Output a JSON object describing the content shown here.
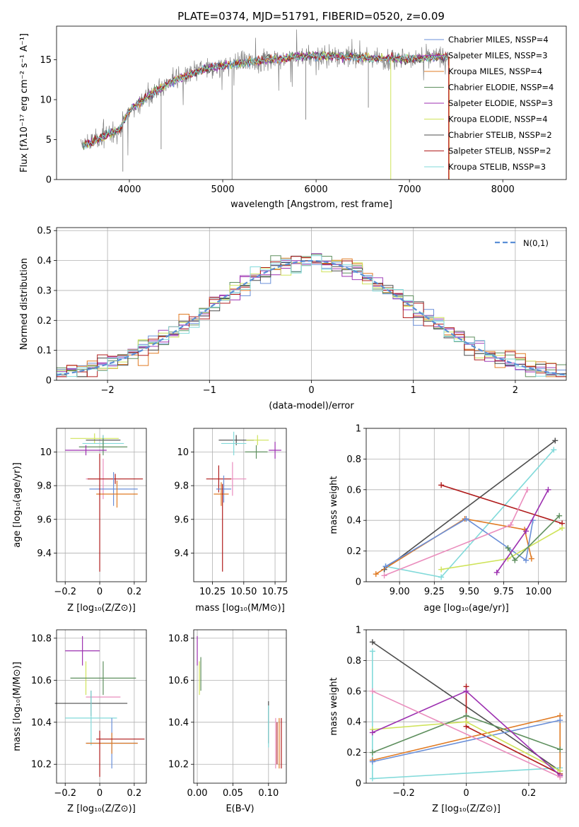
{
  "chart_data": [
    {
      "type": "line",
      "panel": "spectrum",
      "title": "PLATE=0374, MJD=51791, FIBERID=0520, z=0.09",
      "xlabel": "wavelength [Angstrom, rest frame]",
      "ylabel": "Flux [fλ10⁻¹⁷ erg cm⁻² s⁻¹ A⁻¹]",
      "xlim": [
        3220,
        8680
      ],
      "ylim": [
        0,
        19.2
      ],
      "xticks": [
        4000,
        5000,
        6000,
        7000,
        8000
      ],
      "yticks": [
        0,
        5,
        10,
        15
      ],
      "grid": false,
      "legend_position": "right",
      "series": [
        {
          "name": "Chabrier MILES, N_SSP=4",
          "color": "#6a8fd8"
        },
        {
          "name": "Salpeter MILES, N_SSP=3",
          "color": "#a040b8"
        },
        {
          "name": "Kroupa MILES, N_SSP=4",
          "color": "#e07b24"
        },
        {
          "name": "Chabrier ELODIE, N_SSP=4",
          "color": "#5e8f5e"
        },
        {
          "name": "Salpeter ELODIE, N_SSP=3",
          "color": "#9c2fb0"
        },
        {
          "name": "Kroupa ELODIE, N_SSP=4",
          "color": "#cfe35a"
        },
        {
          "name": "Chabrier STELIB, N_SSP=2",
          "color": "#4d4d4d"
        },
        {
          "name": "Salpeter STELIB, N_SSP=2",
          "color": "#b01c1c"
        },
        {
          "name": "Kroupa STELIB, N_SSP=3",
          "color": "#82dada"
        }
      ],
      "continuum": {
        "x": [
          3500,
          3700,
          3900,
          4000,
          4100,
          4300,
          4500,
          4800,
          5000,
          5200,
          5500,
          5800,
          6000,
          6300,
          6600,
          7000,
          7300,
          7420
        ],
        "y": [
          4.2,
          5.2,
          6.3,
          8.6,
          9.6,
          11.2,
          12.5,
          13.8,
          14.3,
          14.6,
          15.0,
          15.4,
          15.5,
          15.4,
          15.2,
          15.1,
          15.3,
          15.4
        ]
      },
      "data_color": "#808080"
    },
    {
      "type": "histogram",
      "panel": "residuals",
      "xlabel": "(data-model)/error",
      "ylabel": "Normed distribution",
      "xlim": [
        -2.5,
        2.5
      ],
      "ylim": [
        0,
        0.51
      ],
      "xticks": [
        -2,
        -1,
        0,
        1,
        2
      ],
      "yticks": [
        0.0,
        0.1,
        0.2,
        0.3,
        0.4,
        0.5
      ],
      "grid": true,
      "legend": [
        {
          "label": "N(0,1)",
          "style": "dashed",
          "color": "#5b8fd6"
        }
      ],
      "legend_position": "top-right",
      "bin_width": 0.1
    },
    {
      "type": "scatter",
      "panel": "age-vs-Z",
      "xlabel": "Z [log₁₀(Z/Z⊙)]",
      "ylabel": "age  [log₁₀(age/yr)]",
      "xlim": [
        -0.25,
        0.27
      ],
      "ylim": [
        9.23,
        10.14
      ],
      "xticks": [
        -0.2,
        0.0,
        0.2
      ],
      "yticks": [
        9.4,
        9.6,
        9.8,
        10.0
      ],
      "grid": true,
      "points": [
        {
          "x": -0.03,
          "y": 10.08,
          "xerr": 0.14,
          "yerr": 0.03,
          "color": "#cfe35a"
        },
        {
          "x": 0.02,
          "y": 10.07,
          "xerr": 0.1,
          "yerr": 0.03,
          "color": "#4d4d4d"
        },
        {
          "x": 0.02,
          "y": 10.05,
          "xerr": 0.12,
          "yerr": 0.05,
          "color": "#82dada"
        },
        {
          "x": 0.02,
          "y": 10.03,
          "xerr": 0.14,
          "yerr": 0.05,
          "color": "#5e8f5e"
        },
        {
          "x": -0.08,
          "y": 10.01,
          "xerr": 0.12,
          "yerr": 0.03,
          "color": "#9c2fb0"
        },
        {
          "x": 0.02,
          "y": 9.84,
          "xerr": 0.1,
          "yerr": 0.12,
          "color": "#ea8dbd"
        },
        {
          "x": 0.09,
          "y": 9.84,
          "xerr": 0.16,
          "yerr": 0.03,
          "color": "#b01c1c"
        },
        {
          "x": 0.08,
          "y": 9.78,
          "xerr": 0.14,
          "yerr": 0.1,
          "color": "#6a8fd8"
        },
        {
          "x": 0.1,
          "y": 9.75,
          "xerr": 0.12,
          "yerr": 0.08,
          "color": "#e07b24"
        },
        {
          "x": 0.0,
          "y": 9.64,
          "xerr": 0.0,
          "yerr": 0.35,
          "color": "#b01c1c"
        }
      ]
    },
    {
      "type": "scatter",
      "panel": "age-vs-mass",
      "xlabel": "mass [log₁₀(M/M⊙)]",
      "ylabel": "",
      "xlim": [
        10.1,
        10.84
      ],
      "ylim": [
        9.23,
        10.14
      ],
      "xticks": [
        10.25,
        10.5,
        10.75
      ],
      "xtick_labels": [
        "10.25",
        "10.50",
        "10.75"
      ],
      "yticks": [
        9.4,
        9.6,
        9.8,
        10.0
      ],
      "grid": true,
      "points": [
        {
          "x": 10.44,
          "y": 10.07,
          "xerr": 0.14,
          "yerr": 0.03,
          "color": "#4d4d4d"
        },
        {
          "x": 10.61,
          "y": 10.07,
          "xerr": 0.09,
          "yerr": 0.03,
          "color": "#cfe35a"
        },
        {
          "x": 10.6,
          "y": 10.0,
          "xerr": 0.09,
          "yerr": 0.04,
          "color": "#5e8f5e"
        },
        {
          "x": 10.42,
          "y": 10.05,
          "xerr": 0.1,
          "yerr": 0.07,
          "color": "#82dada"
        },
        {
          "x": 10.75,
          "y": 10.01,
          "xerr": 0.05,
          "yerr": 0.05,
          "color": "#9c2fb0"
        },
        {
          "x": 10.41,
          "y": 9.84,
          "xerr": 0.11,
          "yerr": 0.1,
          "color": "#ea8dbd"
        },
        {
          "x": 10.3,
          "y": 9.84,
          "xerr": 0.1,
          "yerr": 0.08,
          "color": "#b01c1c"
        },
        {
          "x": 10.34,
          "y": 9.78,
          "xerr": 0.06,
          "yerr": 0.08,
          "color": "#6a8fd8"
        },
        {
          "x": 10.32,
          "y": 9.75,
          "xerr": 0.06,
          "yerr": 0.07,
          "color": "#e07b24"
        },
        {
          "x": 10.33,
          "y": 9.55,
          "xerr": 0.0,
          "yerr": 0.26,
          "color": "#b01c1c"
        }
      ]
    },
    {
      "type": "line",
      "panel": "weight-vs-age",
      "xlabel": "age  [log₁₀(age/yr)]",
      "ylabel": "mass weight",
      "xlim": [
        8.76,
        10.2
      ],
      "ylim": [
        0,
        1.0
      ],
      "xticks": [
        9.0,
        9.25,
        9.5,
        9.75,
        10.0
      ],
      "xtick_labels": [
        "9.00",
        "9.25",
        "9.50",
        "9.75",
        "10.00"
      ],
      "yticks": [
        0.0,
        0.2,
        0.4,
        0.6,
        0.8,
        1.0
      ],
      "grid": true,
      "series": [
        {
          "color": "#4d4d4d",
          "points": [
            [
              8.89,
              0.08
            ],
            [
              10.12,
              0.92
            ]
          ]
        },
        {
          "color": "#82dada",
          "points": [
            [
              8.9,
              0.1
            ],
            [
              9.3,
              0.03
            ],
            [
              10.11,
              0.86
            ]
          ]
        },
        {
          "color": "#b01c1c",
          "points": [
            [
              9.3,
              0.63
            ],
            [
              10.17,
              0.38
            ]
          ]
        },
        {
          "color": "#e07b24",
          "points": [
            [
              8.83,
              0.05
            ],
            [
              9.47,
              0.41
            ],
            [
              9.9,
              0.34
            ],
            [
              9.95,
              0.15
            ]
          ]
        },
        {
          "color": "#6a8fd8",
          "points": [
            [
              8.9,
              0.1
            ],
            [
              9.48,
              0.41
            ],
            [
              9.91,
              0.14
            ],
            [
              9.96,
              0.4
            ]
          ]
        },
        {
          "color": "#cfe35a",
          "points": [
            [
              9.3,
              0.08
            ],
            [
              9.78,
              0.15
            ],
            [
              10.17,
              0.35
            ]
          ]
        },
        {
          "color": "#5e8f5e",
          "points": [
            [
              9.78,
              0.22
            ],
            [
              9.83,
              0.14
            ],
            [
              10.15,
              0.43
            ]
          ]
        },
        {
          "color": "#9c2fb0",
          "points": [
            [
              9.7,
              0.06
            ],
            [
              9.91,
              0.33
            ],
            [
              10.07,
              0.6
            ]
          ]
        },
        {
          "color": "#ea8dbd",
          "points": [
            [
              8.89,
              0.04
            ],
            [
              9.8,
              0.37
            ],
            [
              9.92,
              0.6
            ]
          ]
        }
      ]
    },
    {
      "type": "scatter",
      "panel": "mass-vs-Z",
      "xlabel": "Z [log₁₀(Z/Z⊙)]",
      "ylabel": "mass [log₁₀(M/M⊙)]",
      "xlim": [
        -0.25,
        0.27
      ],
      "ylim": [
        10.11,
        10.84
      ],
      "xticks": [
        -0.2,
        0.0,
        0.2
      ],
      "yticks": [
        10.2,
        10.4,
        10.6,
        10.8
      ],
      "grid": true,
      "points": [
        {
          "x": -0.1,
          "y": 10.74,
          "xerr": 0.1,
          "yerr": 0.07,
          "color": "#9c2fb0"
        },
        {
          "x": -0.08,
          "y": 10.61,
          "xerr": 0.0,
          "yerr": 0.08,
          "color": "#cfe35a"
        },
        {
          "x": 0.02,
          "y": 10.61,
          "xerr": 0.19,
          "yerr": 0.08,
          "color": "#5e8f5e"
        },
        {
          "x": 0.02,
          "y": 10.52,
          "xerr": 0.1,
          "yerr": 0.0,
          "color": "#ea8dbd"
        },
        {
          "x": -0.05,
          "y": 10.49,
          "xerr": 0.21,
          "yerr": 0.06,
          "color": "#4d4d4d"
        },
        {
          "x": -0.05,
          "y": 10.42,
          "xerr": 0.15,
          "yerr": 0.13,
          "color": "#82dada"
        },
        {
          "x": 0.07,
          "y": 10.3,
          "xerr": 0.15,
          "yerr": 0.12,
          "color": "#6a8fd8"
        },
        {
          "x": 0.07,
          "y": 10.3,
          "xerr": 0.15,
          "yerr": 0.05,
          "color": "#e07b24"
        },
        {
          "x": 0.12,
          "y": 10.32,
          "xerr": 0.14,
          "yerr": 0.0,
          "color": "#b01c1c"
        },
        {
          "x": 0.0,
          "y": 10.25,
          "xerr": 0.0,
          "yerr": 0.11,
          "color": "#b01c1c"
        }
      ]
    },
    {
      "type": "scatter",
      "panel": "mass-vs-ebv",
      "xlabel": "E(B-V)",
      "ylabel": "",
      "xlim": [
        -0.005,
        0.125
      ],
      "ylim": [
        10.11,
        10.84
      ],
      "xticks": [
        0.0,
        0.05,
        0.1
      ],
      "xtick_labels": [
        "0.00",
        "0.05",
        "0.10"
      ],
      "yticks": [
        10.2,
        10.4,
        10.6,
        10.8
      ],
      "grid": true,
      "points": [
        {
          "x": 0.0,
          "y": 10.74,
          "yerr": 0.07,
          "color": "#9c2fb0"
        },
        {
          "x": 0.003,
          "y": 10.61,
          "yerr": 0.08,
          "color": "#cfe35a"
        },
        {
          "x": 0.005,
          "y": 10.63,
          "yerr": 0.08,
          "color": "#5e8f5e"
        },
        {
          "x": 0.1,
          "y": 10.4,
          "yerr": 0.1,
          "color": "#4d4d4d"
        },
        {
          "x": 0.1,
          "y": 10.38,
          "yerr": 0.1,
          "color": "#82dada"
        },
        {
          "x": 0.11,
          "y": 10.3,
          "yerr": 0.12,
          "color": "#ea8dbd"
        },
        {
          "x": 0.112,
          "y": 10.3,
          "yerr": 0.1,
          "color": "#b01c1c"
        },
        {
          "x": 0.115,
          "y": 10.3,
          "yerr": 0.12,
          "color": "#e07b24"
        },
        {
          "x": 0.118,
          "y": 10.3,
          "yerr": 0.12,
          "color": "#b01c1c"
        }
      ]
    },
    {
      "type": "line",
      "panel": "weight-vs-Z",
      "xlabel": "Z [log₁₀(Z/Z⊙)]",
      "ylabel": "mass weight",
      "xlim": [
        -0.32,
        0.32
      ],
      "ylim": [
        0,
        1.0
      ],
      "xticks": [
        -0.2,
        0.0,
        0.2
      ],
      "yticks": [
        0.0,
        0.2,
        0.4,
        0.6,
        0.8,
        1.0
      ],
      "grid": true,
      "series": [
        {
          "color": "#4d4d4d",
          "points": [
            [
              -0.3,
              0.92
            ],
            [
              0.3,
              0.08
            ]
          ]
        },
        {
          "color": "#82dada",
          "points": [
            [
              -0.3,
              0.86
            ],
            [
              -0.3,
              0.03
            ],
            [
              0.3,
              0.1
            ]
          ]
        },
        {
          "color": "#b01c1c",
          "points": [
            [
              0.0,
              0.63
            ],
            [
              0.0,
              0.37
            ],
            [
              0.3,
              0.06
            ]
          ]
        },
        {
          "color": "#e07b24",
          "points": [
            [
              -0.3,
              0.15
            ],
            [
              0.3,
              0.44
            ],
            [
              0.3,
              0.05
            ]
          ]
        },
        {
          "color": "#6a8fd8",
          "points": [
            [
              -0.3,
              0.14
            ],
            [
              0.3,
              0.41
            ]
          ]
        },
        {
          "color": "#cfe35a",
          "points": [
            [
              -0.3,
              0.35
            ],
            [
              0.0,
              0.4
            ],
            [
              0.3,
              0.08
            ]
          ]
        },
        {
          "color": "#5e8f5e",
          "points": [
            [
              -0.3,
              0.2
            ],
            [
              0.0,
              0.44
            ],
            [
              0.3,
              0.22
            ]
          ]
        },
        {
          "color": "#9c2fb0",
          "points": [
            [
              -0.3,
              0.33
            ],
            [
              0.0,
              0.6
            ],
            [
              0.3,
              0.05
            ]
          ]
        },
        {
          "color": "#ea8dbd",
          "points": [
            [
              -0.3,
              0.6
            ],
            [
              0.3,
              0.04
            ]
          ]
        }
      ]
    }
  ]
}
